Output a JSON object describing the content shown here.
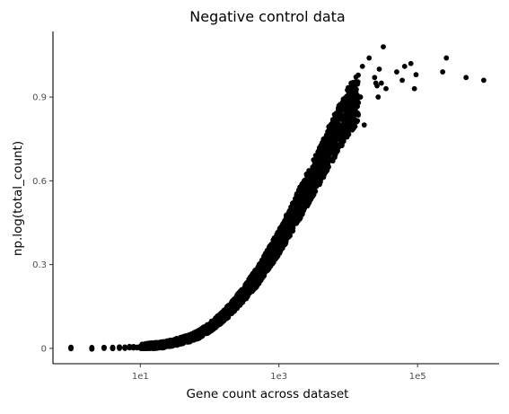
{
  "chart_data": {
    "type": "scatter",
    "title": "Negative control data",
    "xlabel": "Gene count across dataset",
    "ylabel": "np.log(total_count)",
    "x_scale": "log10",
    "xlim": [
      0.55,
      1500000
    ],
    "ylim": [
      -0.055,
      1.135
    ],
    "x_ticks": [
      {
        "value": 10,
        "label": "1e1"
      },
      {
        "value": 1000,
        "label": "1e3"
      },
      {
        "value": 100000,
        "label": "1e5"
      }
    ],
    "y_ticks": [
      {
        "value": 0,
        "label": "0"
      },
      {
        "value": 0.3,
        "label": "0.3"
      },
      {
        "value": 0.6,
        "label": "0.6"
      },
      {
        "value": 0.9,
        "label": "0.9"
      }
    ],
    "grid": false,
    "legend": "none",
    "point_color": "#000000",
    "series": [
      {
        "trend_points": [
          [
            1,
            0.0
          ],
          [
            2,
            0.0
          ],
          [
            3,
            0.001
          ],
          [
            5,
            0.002
          ],
          [
            10,
            0.005
          ],
          [
            20,
            0.012
          ],
          [
            30,
            0.02
          ],
          [
            50,
            0.035
          ],
          [
            70,
            0.05
          ],
          [
            100,
            0.075
          ],
          [
            150,
            0.11
          ],
          [
            200,
            0.14
          ],
          [
            300,
            0.19
          ],
          [
            400,
            0.23
          ],
          [
            500,
            0.26
          ],
          [
            700,
            0.32
          ],
          [
            1000,
            0.38
          ],
          [
            1500,
            0.46
          ],
          [
            2000,
            0.52
          ],
          [
            3000,
            0.6
          ],
          [
            4000,
            0.66
          ],
          [
            5000,
            0.71
          ],
          [
            7000,
            0.78
          ],
          [
            10000,
            0.85
          ],
          [
            15000,
            0.91
          ],
          [
            20000,
            0.95
          ]
        ],
        "upper_points": [
          [
            14000,
            0.88
          ],
          [
            15000,
            0.9
          ],
          [
            16000,
            1.01
          ],
          [
            17000,
            0.8
          ],
          [
            20000,
            1.04
          ],
          [
            24000,
            0.97
          ],
          [
            25000,
            0.95
          ],
          [
            26000,
            0.94
          ],
          [
            27000,
            0.9
          ],
          [
            28000,
            1.0
          ],
          [
            30000,
            0.95
          ],
          [
            32000,
            1.08
          ],
          [
            35000,
            0.93
          ],
          [
            50000,
            0.99
          ],
          [
            60000,
            0.96
          ],
          [
            65000,
            1.01
          ],
          [
            80000,
            1.02
          ],
          [
            90000,
            0.93
          ],
          [
            95000,
            0.98
          ],
          [
            230000,
            0.99
          ],
          [
            260000,
            1.04
          ],
          [
            500000,
            0.97
          ],
          [
            900000,
            0.96
          ]
        ]
      }
    ]
  }
}
